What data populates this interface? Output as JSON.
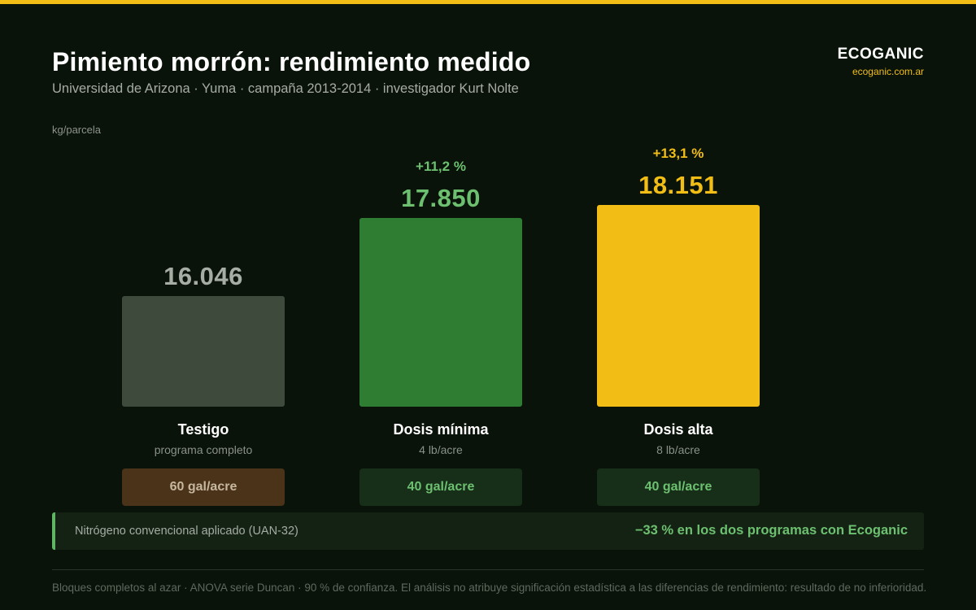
{
  "header": {
    "title": "Pimiento morrón: rendimiento medido",
    "subtitle": "Universidad de Arizona · Yuma · campaña 2013-2014 · investigador Kurt Nolte"
  },
  "brand": {
    "name": "ECOGANIC",
    "url": "ecoganic.com.ar"
  },
  "colors": {
    "background": "#0a1309",
    "accent_yellow": "#f2be15",
    "green": "#2e7d32",
    "gray": "#3e4a3c",
    "green_text": "#6cc070"
  },
  "chart_data": {
    "type": "bar",
    "ylabel": "kg/parcela",
    "categories": [
      "Testigo",
      "Dosis mínima",
      "Dosis alta"
    ],
    "values": [
      16046,
      17850,
      18151
    ],
    "value_labels": [
      "16.046",
      "17.850",
      "18.151"
    ],
    "deltas": [
      "",
      "+11,2 %",
      "+13,1 %"
    ],
    "subcategories": [
      "programa completo",
      "4 lb/acre",
      "8 lb/acre"
    ],
    "bar_colors": [
      "#3e4a3c",
      "#2e7d32",
      "#f2be15"
    ],
    "value_colors": [
      "#a6ada4",
      "#6cc070",
      "#f2be15"
    ],
    "delta_colors": [
      "",
      "#6cc070",
      "#f2be15"
    ]
  },
  "nitrogen": {
    "label": "Nitrógeno convencional aplicado (UAN-32)",
    "doses": [
      "60 gal/acre",
      "40 gal/acre",
      "40 gal/acre"
    ],
    "result": "−33 % en los dos programas con Ecoganic"
  },
  "footnote": "Bloques completos al azar · ANOVA serie Duncan · 90 % de confianza. El análisis no atribuye significación estadística a las diferencias de rendimiento: resultado de no inferioridad."
}
